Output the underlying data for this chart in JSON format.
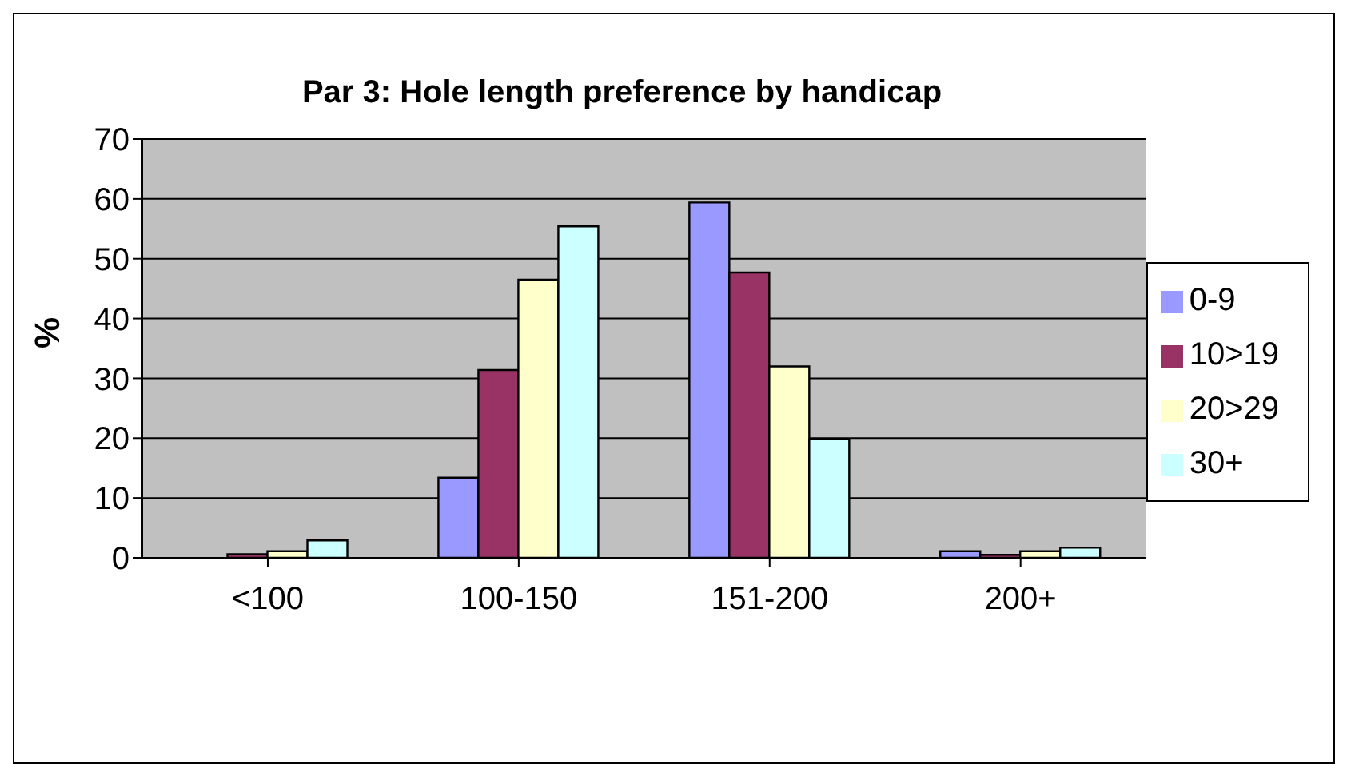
{
  "chart_data": {
    "type": "bar",
    "title": "Par 3: Hole length preference by handicap",
    "ylabel": "%",
    "categories": [
      "<100",
      "100-150",
      "151-200",
      "200+"
    ],
    "series": [
      {
        "name": "0-9",
        "color": "#9999ff",
        "values": [
          0,
          13.4,
          59.4,
          1.1
        ]
      },
      {
        "name": "10>19",
        "color": "#993366",
        "values": [
          0.6,
          31.4,
          47.7,
          0.5
        ]
      },
      {
        "name": "20>29",
        "color": "#ffffcc",
        "values": [
          1.1,
          46.5,
          32.0,
          1.1
        ]
      },
      {
        "name": "30+",
        "color": "#ccffff",
        "values": [
          2.9,
          55.4,
          19.8,
          1.7
        ]
      }
    ],
    "ylim": [
      0,
      70
    ],
    "yticks": [
      0,
      10,
      20,
      30,
      40,
      50,
      60,
      70
    ],
    "grid": "y",
    "legend": "right"
  }
}
